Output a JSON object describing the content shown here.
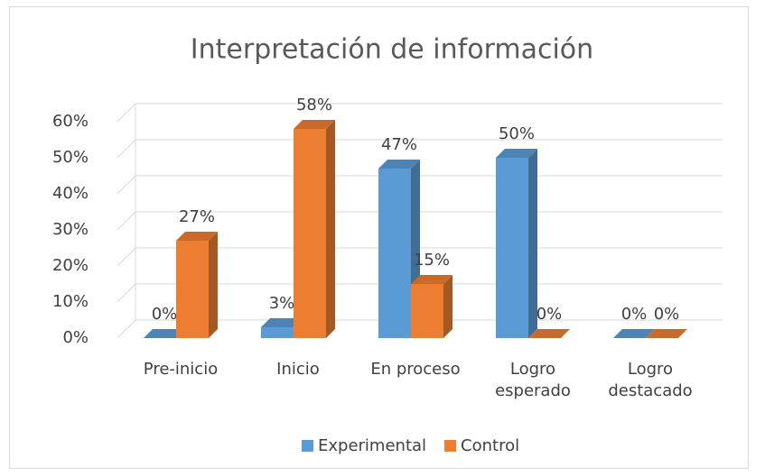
{
  "chart_data": {
    "type": "bar3d",
    "title": "Interpretación de información",
    "categories": [
      "Pre-inicio",
      "Inicio",
      "En proceso",
      "Logro esperado",
      "Logro destacado"
    ],
    "series": [
      {
        "name": "Experimental",
        "color": "#5b9bd5",
        "values": [
          0,
          3,
          47,
          50,
          0
        ],
        "value_labels": [
          "0%",
          "3%",
          "47%",
          "50%",
          "0%"
        ]
      },
      {
        "name": "Control",
        "color": "#ed7d31",
        "values": [
          27,
          58,
          15,
          0,
          0
        ],
        "value_labels": [
          "27%",
          "58%",
          "15%",
          "0%",
          "0%"
        ]
      }
    ],
    "ylim": [
      0,
      60
    ],
    "yticks": [
      {
        "value": 0,
        "label": "0%"
      },
      {
        "value": 10,
        "label": "10%"
      },
      {
        "value": 20,
        "label": "20%"
      },
      {
        "value": 30,
        "label": "30%"
      },
      {
        "value": 40,
        "label": "40%"
      },
      {
        "value": 50,
        "label": "50%"
      },
      {
        "value": 60,
        "label": "60%"
      }
    ],
    "grid": true,
    "legend": "bottom"
  }
}
